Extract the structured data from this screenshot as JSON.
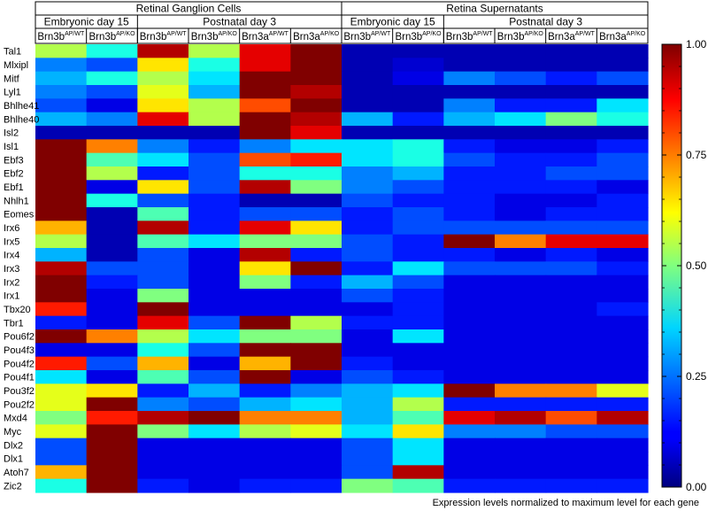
{
  "chart_data": {
    "type": "heatmap",
    "colormap": "jet",
    "groups": [
      {
        "label": "Retinal Ganglion Cells",
        "columns": 6
      },
      {
        "label": "Retina Supernatants",
        "columns": 6
      }
    ],
    "subgroups": [
      {
        "label": "Embryonic day 15",
        "columns": 2
      },
      {
        "label": "Postnatal day 3",
        "columns": 4
      },
      {
        "label": "Embryonic day 15",
        "columns": 2
      },
      {
        "label": "Postnatal day 3",
        "columns": 4
      }
    ],
    "columns": [
      {
        "base": "Brn3b",
        "sup": "AP/WT"
      },
      {
        "base": "Brn3b",
        "sup": "AP/KO"
      },
      {
        "base": "Brn3b",
        "sup": "AP/WT"
      },
      {
        "base": "Brn3b",
        "sup": "AP/KO"
      },
      {
        "base": "Brn3a",
        "sup": "AP/WT"
      },
      {
        "base": "Brn3a",
        "sup": "AP/KO"
      },
      {
        "base": "Brn3b",
        "sup": "AP/WT"
      },
      {
        "base": "Brn3b",
        "sup": "AP/KO"
      },
      {
        "base": "Brn3b",
        "sup": "AP/WT"
      },
      {
        "base": "Brn3b",
        "sup": "AP/KO"
      },
      {
        "base": "Brn3a",
        "sup": "AP/WT"
      },
      {
        "base": "Brn3a",
        "sup": "AP/KO"
      }
    ],
    "rows": [
      "Tal1",
      "Mlxipl",
      "Mitf",
      "Lyl1",
      "Bhlhe41",
      "Bhlhe40",
      "Isl2",
      "Isl1",
      "Ebf3",
      "Ebf2",
      "Ebf1",
      "Nhlh1",
      "Eomes",
      "Irx6",
      "Irx5",
      "Irx4",
      "Irx3",
      "Irx2",
      "Irx1",
      "Tbx20",
      "Tbr1",
      "Pou6f2",
      "Pou4f3",
      "Pou4f2",
      "Pou4f1",
      "Pou3f2",
      "Pou2f2",
      "Mxd4",
      "Myc",
      "Dlx2",
      "Dlx1",
      "Atoh7",
      "Zic2"
    ],
    "values": [
      [
        0.55,
        0.4,
        0.95,
        0.55,
        0.9,
        1.0,
        0.05,
        0.05,
        0.05,
        0.05,
        0.05,
        0.05
      ],
      [
        0.25,
        0.2,
        0.65,
        0.4,
        0.9,
        1.0,
        0.05,
        0.08,
        0.05,
        0.05,
        0.05,
        0.05
      ],
      [
        0.3,
        0.4,
        0.55,
        0.35,
        1.0,
        1.0,
        0.05,
        0.1,
        0.25,
        0.2,
        0.15,
        0.2
      ],
      [
        0.25,
        0.2,
        0.6,
        0.3,
        1.0,
        0.95,
        0.05,
        0.05,
        0.05,
        0.05,
        0.05,
        0.05
      ],
      [
        0.2,
        0.1,
        0.65,
        0.55,
        0.8,
        1.0,
        0.05,
        0.05,
        0.25,
        0.15,
        0.15,
        0.35
      ],
      [
        0.3,
        0.25,
        0.9,
        0.55,
        1.0,
        0.95,
        0.3,
        0.15,
        0.3,
        0.35,
        0.5,
        0.4
      ],
      [
        0.05,
        0.05,
        0.05,
        0.05,
        1.0,
        0.9,
        0.05,
        0.05,
        0.05,
        0.05,
        0.05,
        0.05
      ],
      [
        1.0,
        0.75,
        0.25,
        0.15,
        0.25,
        0.35,
        0.35,
        0.4,
        0.15,
        0.1,
        0.1,
        0.15
      ],
      [
        1.0,
        0.45,
        0.35,
        0.2,
        0.8,
        0.85,
        0.35,
        0.4,
        0.2,
        0.15,
        0.15,
        0.2
      ],
      [
        1.0,
        0.55,
        0.15,
        0.2,
        0.4,
        0.4,
        0.25,
        0.3,
        0.15,
        0.15,
        0.2,
        0.2
      ],
      [
        1.0,
        0.1,
        0.65,
        0.2,
        0.95,
        0.5,
        0.25,
        0.2,
        0.15,
        0.15,
        0.15,
        0.1
      ],
      [
        1.0,
        0.4,
        0.2,
        0.15,
        0.05,
        0.05,
        0.2,
        0.15,
        0.15,
        0.1,
        0.1,
        0.15
      ],
      [
        1.0,
        0.05,
        0.45,
        0.15,
        0.2,
        0.2,
        0.15,
        0.2,
        0.15,
        0.1,
        0.15,
        0.15
      ],
      [
        0.7,
        0.05,
        0.95,
        0.15,
        0.9,
        0.65,
        0.15,
        0.2,
        0.2,
        0.2,
        0.2,
        0.2
      ],
      [
        0.55,
        0.05,
        0.45,
        0.35,
        0.5,
        0.5,
        0.2,
        0.15,
        1.0,
        0.75,
        0.9,
        0.9
      ],
      [
        0.3,
        0.05,
        0.2,
        0.1,
        0.95,
        0.15,
        0.2,
        0.15,
        0.15,
        0.1,
        0.15,
        0.1
      ],
      [
        0.95,
        0.2,
        0.2,
        0.1,
        0.65,
        1.0,
        0.15,
        0.35,
        0.2,
        0.2,
        0.2,
        0.15
      ],
      [
        1.0,
        0.15,
        0.2,
        0.1,
        0.5,
        0.15,
        0.3,
        0.2,
        0.1,
        0.1,
        0.1,
        0.1
      ],
      [
        1.0,
        0.1,
        0.5,
        0.1,
        0.1,
        0.1,
        0.2,
        0.15,
        0.1,
        0.1,
        0.1,
        0.1
      ],
      [
        0.85,
        0.1,
        1.0,
        0.1,
        0.1,
        0.1,
        0.1,
        0.15,
        0.1,
        0.1,
        0.1,
        0.15
      ],
      [
        0.15,
        0.1,
        0.9,
        0.2,
        1.0,
        0.55,
        0.15,
        0.15,
        0.1,
        0.1,
        0.1,
        0.1
      ],
      [
        1.0,
        0.75,
        0.55,
        0.35,
        0.5,
        0.5,
        0.1,
        0.35,
        0.1,
        0.1,
        0.1,
        0.1
      ],
      [
        0.1,
        0.1,
        0.4,
        0.2,
        1.0,
        1.0,
        0.1,
        0.1,
        0.1,
        0.1,
        0.1,
        0.1
      ],
      [
        0.85,
        0.2,
        0.7,
        0.1,
        0.7,
        1.0,
        0.15,
        0.1,
        0.1,
        0.1,
        0.1,
        0.1
      ],
      [
        0.35,
        0.1,
        0.45,
        0.2,
        1.0,
        0.1,
        0.2,
        0.15,
        0.1,
        0.1,
        0.1,
        0.1
      ],
      [
        0.6,
        0.65,
        0.15,
        0.3,
        0.15,
        0.25,
        0.3,
        0.35,
        1.0,
        0.75,
        0.75,
        0.6
      ],
      [
        0.6,
        1.0,
        0.25,
        0.2,
        0.3,
        0.35,
        0.3,
        0.55,
        0.15,
        0.15,
        0.15,
        0.15
      ],
      [
        0.5,
        0.85,
        0.95,
        1.0,
        0.75,
        0.75,
        0.3,
        0.45,
        0.9,
        0.95,
        0.8,
        0.95
      ],
      [
        0.6,
        1.0,
        0.5,
        0.35,
        0.55,
        0.6,
        0.35,
        0.65,
        0.25,
        0.25,
        0.2,
        0.2
      ],
      [
        0.2,
        1.0,
        0.1,
        0.1,
        0.1,
        0.1,
        0.2,
        0.35,
        0.1,
        0.1,
        0.1,
        0.1
      ],
      [
        0.2,
        1.0,
        0.1,
        0.1,
        0.1,
        0.1,
        0.2,
        0.35,
        0.1,
        0.1,
        0.1,
        0.1
      ],
      [
        0.7,
        1.0,
        0.1,
        0.1,
        0.1,
        0.1,
        0.2,
        0.95,
        0.1,
        0.1,
        0.1,
        0.1
      ],
      [
        0.4,
        1.0,
        0.15,
        0.1,
        0.15,
        0.15,
        0.5,
        0.45,
        0.15,
        0.15,
        0.15,
        0.15
      ]
    ],
    "colorbar": {
      "min": 0.0,
      "max": 1.0,
      "ticks": [
        "1.00",
        "0.75",
        "0.50",
        "0.25",
        "0.00"
      ]
    },
    "caption": "Expression levels normalized to maximum level for each gene"
  }
}
